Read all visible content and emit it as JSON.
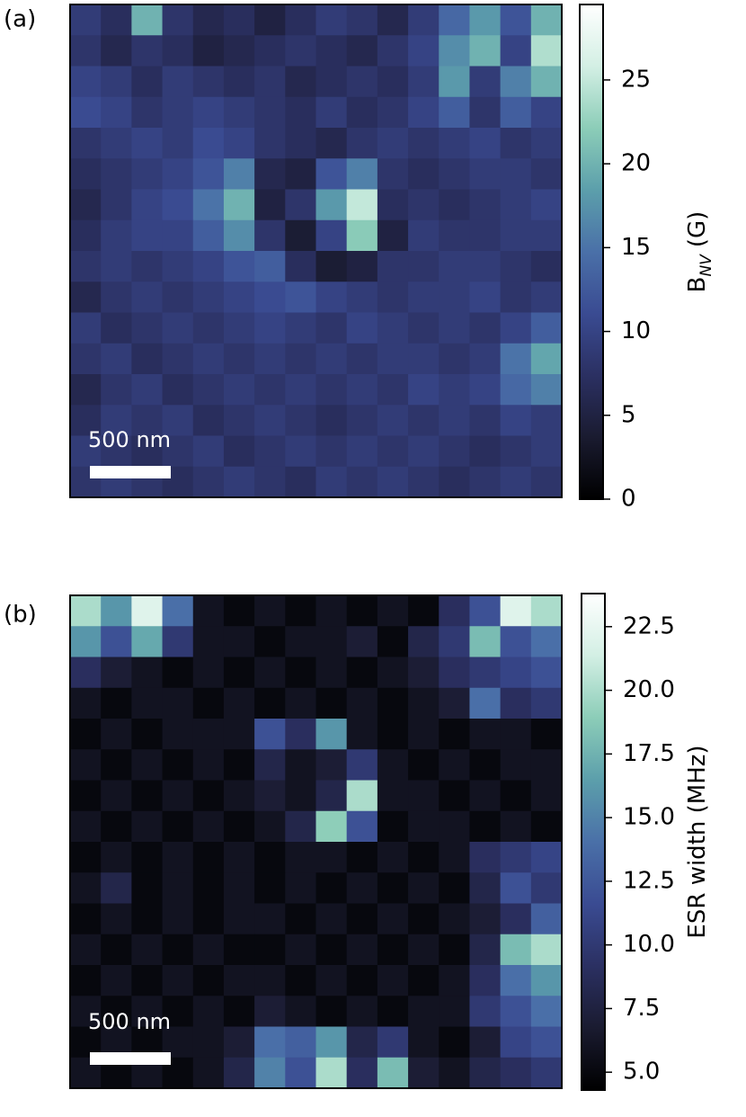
{
  "chart_data": [
    {
      "type": "heatmap",
      "panel_label": "(a)",
      "scalebar_label": "500 nm",
      "clim": [
        0,
        29.5
      ],
      "colorbar": {
        "label_parts": [
          "B",
          "NV",
          "(G)"
        ],
        "ticks": [
          0,
          5,
          10,
          15,
          20,
          25
        ]
      },
      "values": [
        [
          9,
          7,
          20,
          8,
          6,
          7,
          5,
          7,
          9,
          8,
          6,
          9,
          14,
          18,
          12,
          20
        ],
        [
          8,
          6,
          8,
          7,
          5,
          6,
          7,
          8,
          7,
          6,
          8,
          10,
          17,
          20,
          10,
          24
        ],
        [
          10,
          9,
          7,
          9,
          8,
          7,
          8,
          6,
          7,
          8,
          7,
          9,
          18,
          9,
          16,
          20
        ],
        [
          11,
          10,
          8,
          9,
          10,
          9,
          8,
          7,
          9,
          7,
          8,
          10,
          13,
          8,
          13,
          10
        ],
        [
          8,
          9,
          10,
          9,
          11,
          10,
          8,
          7,
          6,
          8,
          9,
          8,
          9,
          10,
          8,
          9
        ],
        [
          7,
          8,
          9,
          10,
          12,
          16,
          6,
          5,
          12,
          16,
          8,
          7,
          8,
          9,
          9,
          8
        ],
        [
          6,
          8,
          10,
          11,
          15,
          20,
          5,
          8,
          18,
          25,
          7,
          8,
          7,
          8,
          9,
          10
        ],
        [
          7,
          9,
          10,
          10,
          13,
          17,
          8,
          4,
          10,
          22,
          5,
          9,
          8,
          8,
          9,
          9
        ],
        [
          8,
          9,
          8,
          9,
          10,
          12,
          13,
          7,
          4,
          5,
          8,
          8,
          9,
          9,
          8,
          7
        ],
        [
          6,
          8,
          9,
          8,
          9,
          10,
          11,
          12,
          10,
          9,
          8,
          9,
          9,
          10,
          8,
          9
        ],
        [
          9,
          7,
          8,
          9,
          8,
          9,
          10,
          9,
          8,
          10,
          9,
          8,
          9,
          8,
          10,
          13
        ],
        [
          8,
          9,
          7,
          8,
          9,
          8,
          9,
          8,
          9,
          8,
          9,
          9,
          8,
          9,
          15,
          19
        ],
        [
          6,
          8,
          9,
          7,
          8,
          9,
          8,
          9,
          8,
          9,
          8,
          10,
          9,
          10,
          14,
          16
        ],
        [
          7,
          9,
          8,
          9,
          7,
          8,
          9,
          8,
          7,
          8,
          9,
          8,
          9,
          8,
          10,
          9
        ],
        [
          9,
          8,
          7,
          8,
          9,
          7,
          8,
          9,
          8,
          9,
          8,
          9,
          8,
          7,
          8,
          9
        ],
        [
          8,
          9,
          8,
          7,
          8,
          9,
          8,
          7,
          9,
          8,
          9,
          8,
          7,
          8,
          9,
          8
        ]
      ]
    },
    {
      "type": "heatmap",
      "panel_label": "(b)",
      "scalebar_label": "500 nm",
      "clim": [
        4.3,
        23.8
      ],
      "colorbar": {
        "label_parts": [
          "ESR width (MHz)"
        ],
        "ticks": [
          {
            "value": 5,
            "label": "5.0"
          },
          {
            "value": 7.5,
            "label": "7.5"
          },
          {
            "value": 10,
            "label": "10.0"
          },
          {
            "value": 12.5,
            "label": "12.5"
          },
          {
            "value": 15,
            "label": "15.0"
          },
          {
            "value": 17.5,
            "label": "17.5"
          },
          {
            "value": 20,
            "label": "20.0"
          },
          {
            "value": 22.5,
            "label": "22.5"
          }
        ]
      },
      "values": [
        [
          20,
          16,
          22,
          14,
          6,
          5,
          6,
          5,
          6,
          5,
          6,
          5,
          9,
          12,
          22,
          20
        ],
        [
          16,
          12,
          17,
          10,
          6,
          6,
          5,
          6,
          6,
          7,
          5,
          8,
          10,
          18,
          12,
          14
        ],
        [
          9,
          7,
          6,
          5,
          6,
          5,
          6,
          5,
          6,
          5,
          6,
          7,
          9,
          10,
          11,
          12
        ],
        [
          6,
          5,
          6,
          6,
          5,
          6,
          5,
          6,
          5,
          6,
          5,
          6,
          7,
          14,
          9,
          10
        ],
        [
          5,
          6,
          5,
          6,
          6,
          6,
          12,
          9,
          16,
          6,
          5,
          6,
          5,
          6,
          6,
          5
        ],
        [
          6,
          5,
          6,
          5,
          6,
          5,
          8,
          6,
          7,
          10,
          6,
          5,
          6,
          5,
          6,
          6
        ],
        [
          5,
          6,
          5,
          6,
          5,
          6,
          7,
          6,
          8,
          20,
          6,
          6,
          5,
          6,
          5,
          6
        ],
        [
          6,
          5,
          6,
          5,
          6,
          5,
          6,
          8,
          19,
          12,
          5,
          6,
          6,
          5,
          6,
          5
        ],
        [
          5,
          6,
          5,
          6,
          5,
          6,
          5,
          6,
          6,
          5,
          6,
          5,
          6,
          9,
          10,
          11
        ],
        [
          6,
          8,
          5,
          6,
          5,
          6,
          5,
          6,
          5,
          6,
          5,
          6,
          5,
          8,
          12,
          10
        ],
        [
          5,
          6,
          5,
          6,
          5,
          6,
          6,
          5,
          6,
          5,
          6,
          5,
          6,
          7,
          9,
          13
        ],
        [
          6,
          5,
          6,
          5,
          6,
          5,
          5,
          6,
          5,
          6,
          5,
          6,
          5,
          8,
          18,
          20
        ],
        [
          5,
          6,
          5,
          6,
          5,
          6,
          6,
          5,
          6,
          5,
          6,
          5,
          6,
          9,
          14,
          16
        ],
        [
          6,
          5,
          6,
          5,
          6,
          5,
          7,
          6,
          5,
          6,
          5,
          6,
          6,
          10,
          12,
          14
        ],
        [
          5,
          6,
          5,
          6,
          6,
          7,
          14,
          13,
          16,
          8,
          10,
          6,
          5,
          7,
          11,
          12
        ],
        [
          6,
          5,
          6,
          5,
          6,
          8,
          15,
          12,
          20,
          9,
          18,
          7,
          6,
          8,
          9,
          10
        ]
      ]
    }
  ],
  "colormap": [
    "#000000",
    "#1a1b30",
    "#2b3062",
    "#3a4b92",
    "#4a70a8",
    "#5c9fab",
    "#8ccdb8",
    "#d3efe4",
    "#ffffff"
  ]
}
